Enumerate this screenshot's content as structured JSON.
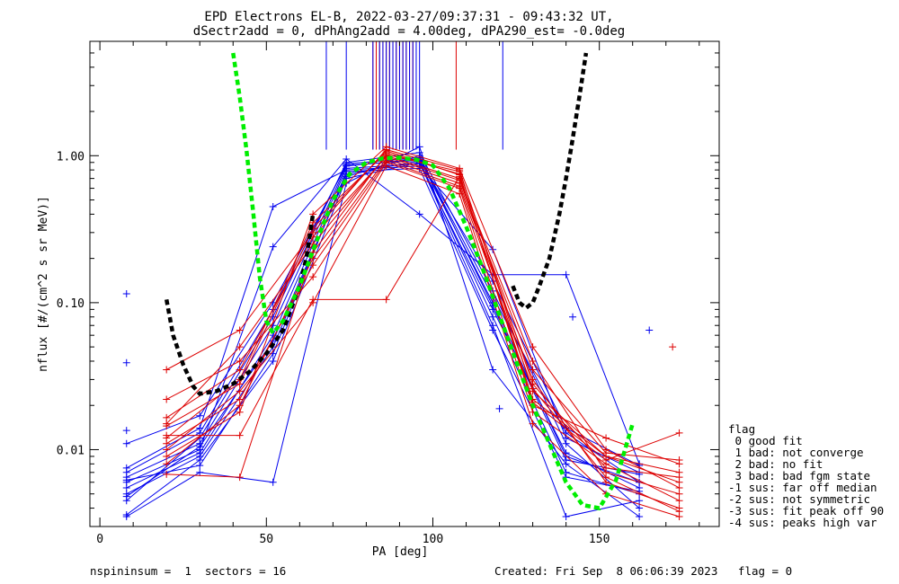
{
  "title": {
    "line1": "EPD Electrons EL-B, 2022-03-27/09:37:31 - 09:43:32 UT,",
    "line2": "dSectr2add = 0, dPhAng2add = 4.00deg, dPA290_est=  -0.0deg"
  },
  "footer": {
    "left": "nspininsum =  1  sectors = 16",
    "right": "Created: Fri Sep  8 06:06:39 2023   flag = 0"
  },
  "legend": {
    "title": "flag",
    "items": [
      " 0 good fit",
      " 1 bad: not converge",
      " 2 bad: no fit",
      " 3 bad: bad fgm state",
      "-1 sus: far off median",
      "-2 sus: not symmetric",
      "-3 sus: fit peak off 90",
      "-4 sus: peaks high var"
    ]
  },
  "chart_data": {
    "type": "line",
    "xlabel": "PA [deg]",
    "ylabel": "nflux [#/(cm^2 s sr MeV)]",
    "xlim": [
      -3,
      186
    ],
    "ylim": [
      0.003,
      6
    ],
    "yscale": "log",
    "x_ticks": [
      0,
      50,
      100,
      150
    ],
    "x_tick_labels": [
      "0",
      "50",
      "100",
      "150"
    ],
    "y_ticks": [
      0.01,
      0.1,
      1.0
    ],
    "y_tick_labels": [
      "0.01",
      "0.10",
      "1.00"
    ],
    "colors": {
      "red": "#dd0000",
      "blue": "#0000ee",
      "green": "#00ee00",
      "black": "#000000"
    },
    "series": [
      {
        "color": "blue",
        "x": [
          8,
          30,
          52,
          74,
          96,
          118,
          140,
          162
        ],
        "y": [
          0.0065,
          0.011,
          0.07,
          0.85,
          0.95,
          0.1,
          0.009,
          0.006
        ]
      },
      {
        "color": "blue",
        "x": [
          8,
          30,
          52,
          74,
          96,
          118,
          140,
          162
        ],
        "y": [
          0.005,
          0.009,
          0.05,
          0.75,
          0.92,
          0.08,
          0.007,
          0.005
        ]
      },
      {
        "color": "blue",
        "x": [
          8,
          30,
          52,
          74,
          96,
          118,
          140,
          162
        ],
        "y": [
          0.0045,
          0.012,
          0.08,
          0.9,
          1.05,
          0.12,
          0.011,
          0.004
        ]
      },
      {
        "color": "blue",
        "x": [
          8,
          30,
          52,
          74,
          96,
          118,
          140,
          162
        ],
        "y": [
          0.0075,
          0.014,
          0.45,
          0.8,
          0.85,
          0.23,
          0.012,
          0.007
        ]
      },
      {
        "color": "blue",
        "x": [
          8,
          30,
          52,
          74,
          96,
          118,
          140,
          162
        ],
        "y": [
          0.0036,
          0.0085,
          0.04,
          0.7,
          0.9,
          0.07,
          0.0035,
          0.0045
        ]
      },
      {
        "color": "blue",
        "x": [
          8,
          30,
          52,
          74,
          96,
          118,
          140,
          162
        ],
        "y": [
          0.006,
          0.01,
          0.24,
          0.95,
          0.4,
          0.155,
          0.155,
          0.008
        ]
      },
      {
        "color": "blue",
        "x": [
          8,
          30,
          52,
          74,
          96,
          118,
          140,
          162
        ],
        "y": [
          0.0035,
          0.007,
          0.006,
          0.65,
          1.15,
          0.035,
          0.008,
          0.0035
        ]
      },
      {
        "color": "blue",
        "x": [
          8,
          30,
          52,
          74,
          96,
          118,
          140,
          162
        ],
        "y": [
          0.0055,
          0.0095,
          0.06,
          0.82,
          0.88,
          0.09,
          0.0095,
          0.0055
        ]
      },
      {
        "color": "blue",
        "x": [
          8,
          30,
          52,
          74,
          96,
          118,
          140,
          162
        ],
        "y": [
          0.007,
          0.013,
          0.09,
          0.88,
          0.97,
          0.11,
          0.013,
          0.006
        ]
      },
      {
        "color": "blue",
        "x": [
          8,
          30,
          52,
          74,
          96,
          118,
          140,
          162
        ],
        "y": [
          0.0062,
          0.0078,
          0.045,
          0.78,
          0.82,
          0.065,
          0.0065,
          0.0052
        ]
      },
      {
        "color": "blue",
        "x": [
          8,
          30,
          52,
          74,
          96,
          118,
          140,
          162
        ],
        "y": [
          0.0048,
          0.0105,
          0.055,
          0.72,
          1.0,
          0.095,
          0.0085,
          0.0068
        ]
      },
      {
        "color": "blue",
        "x": [
          8,
          30,
          52,
          74,
          96,
          118,
          140,
          162
        ],
        "y": [
          0.011,
          0.017,
          0.1,
          0.86,
          0.93,
          0.14,
          0.014,
          0.0078
        ]
      },
      {
        "color": "red",
        "x": [
          20,
          42,
          64,
          86,
          108,
          130,
          152,
          174
        ],
        "y": [
          0.035,
          0.065,
          0.3,
          1.1,
          0.8,
          0.025,
          0.009,
          0.006
        ]
      },
      {
        "color": "red",
        "x": [
          20,
          42,
          64,
          86,
          108,
          130,
          152,
          174
        ],
        "y": [
          0.015,
          0.05,
          0.25,
          1.0,
          0.7,
          0.04,
          0.007,
          0.005
        ]
      },
      {
        "color": "red",
        "x": [
          20,
          42,
          64,
          86,
          108,
          130,
          152,
          174
        ],
        "y": [
          0.012,
          0.03,
          0.35,
          1.05,
          0.75,
          0.02,
          0.012,
          0.008
        ]
      },
      {
        "color": "red",
        "x": [
          20,
          42,
          64,
          86,
          108,
          130,
          152,
          174
        ],
        "y": [
          0.008,
          0.02,
          0.2,
          0.95,
          0.65,
          0.03,
          0.006,
          0.004
        ]
      },
      {
        "color": "red",
        "x": [
          20,
          42,
          64,
          86,
          108,
          130,
          152,
          174
        ],
        "y": [
          0.022,
          0.04,
          0.15,
          0.9,
          0.6,
          0.018,
          0.008,
          0.0045
        ]
      },
      {
        "color": "red",
        "x": [
          20,
          42,
          64,
          86,
          108,
          130,
          152,
          174
        ],
        "y": [
          0.01,
          0.025,
          0.1,
          0.85,
          0.55,
          0.015,
          0.005,
          0.0035
        ]
      },
      {
        "color": "red",
        "x": [
          20,
          42,
          64,
          86,
          108,
          130,
          152,
          174
        ],
        "y": [
          0.0125,
          0.0125,
          0.105,
          0.105,
          0.72,
          0.022,
          0.009,
          0.007
        ]
      },
      {
        "color": "red",
        "x": [
          20,
          42,
          64,
          86,
          108,
          130,
          152,
          174
        ],
        "y": [
          0.009,
          0.018,
          0.4,
          1.15,
          0.82,
          0.05,
          0.01,
          0.0055
        ]
      },
      {
        "color": "red",
        "x": [
          20,
          42,
          64,
          86,
          108,
          130,
          152,
          174
        ],
        "y": [
          0.0068,
          0.0065,
          0.22,
          1.02,
          0.78,
          0.028,
          0.0075,
          0.0065
        ]
      },
      {
        "color": "red",
        "x": [
          20,
          42,
          64,
          86,
          108,
          130,
          152,
          174
        ],
        "y": [
          0.0165,
          0.035,
          0.28,
          0.98,
          0.68,
          0.035,
          0.0095,
          0.0085
        ]
      },
      {
        "color": "red",
        "x": [
          20,
          42,
          64,
          86,
          108,
          130,
          152,
          174
        ],
        "y": [
          0.011,
          0.022,
          0.18,
          0.92,
          0.62,
          0.026,
          0.0065,
          0.0038
        ]
      },
      {
        "color": "red",
        "x": [
          20,
          42,
          64,
          86,
          108,
          130,
          152,
          174
        ],
        "y": [
          0.0145,
          0.028,
          0.32,
          1.08,
          0.74,
          0.021,
          0.0085,
          0.013
        ]
      }
    ],
    "fit_green": {
      "x": [
        40,
        42,
        44,
        46,
        48,
        50,
        52,
        55,
        60,
        65,
        70,
        75,
        80,
        85,
        90,
        95,
        100,
        105,
        110,
        115,
        120,
        125,
        130,
        135,
        140,
        145,
        150,
        155,
        160
      ],
      "y": [
        5.0,
        2.5,
        1.1,
        0.42,
        0.15,
        0.075,
        0.062,
        0.075,
        0.13,
        0.26,
        0.5,
        0.75,
        0.9,
        0.96,
        0.97,
        0.94,
        0.86,
        0.6,
        0.33,
        0.17,
        0.082,
        0.04,
        0.02,
        0.011,
        0.006,
        0.0042,
        0.004,
        0.0062,
        0.015
      ]
    },
    "fit_black": {
      "x": [
        20,
        22,
        25,
        28,
        30,
        35,
        40,
        45,
        50,
        55,
        60,
        62,
        64,
        124,
        126,
        128,
        130,
        132,
        135,
        138,
        140,
        142,
        144,
        146
      ],
      "y": [
        0.105,
        0.06,
        0.038,
        0.027,
        0.024,
        0.025,
        0.028,
        0.034,
        0.045,
        0.065,
        0.13,
        0.2,
        0.4,
        0.13,
        0.1,
        0.092,
        0.1,
        0.13,
        0.2,
        0.4,
        0.7,
        1.3,
        2.5,
        5.0
      ]
    },
    "vlines": {
      "blue_x": [
        68,
        74,
        82,
        84,
        85,
        86,
        87,
        88,
        89,
        90,
        91,
        92,
        93,
        94,
        95,
        96,
        121
      ],
      "red_x": [
        82,
        83,
        84,
        85,
        86,
        87,
        88,
        89,
        90,
        91,
        92,
        93,
        94,
        107
      ],
      "y_bottom": 1.1
    },
    "outliers": [
      {
        "color": "blue",
        "x": 8,
        "y": 0.115
      },
      {
        "color": "blue",
        "x": 8,
        "y": 0.039
      },
      {
        "color": "blue",
        "x": 8,
        "y": 0.0135
      },
      {
        "color": "blue",
        "x": 165,
        "y": 0.065
      },
      {
        "color": "red",
        "x": 172,
        "y": 0.05
      },
      {
        "color": "blue",
        "x": 142,
        "y": 0.08
      },
      {
        "color": "blue",
        "x": 120,
        "y": 0.019
      }
    ]
  }
}
